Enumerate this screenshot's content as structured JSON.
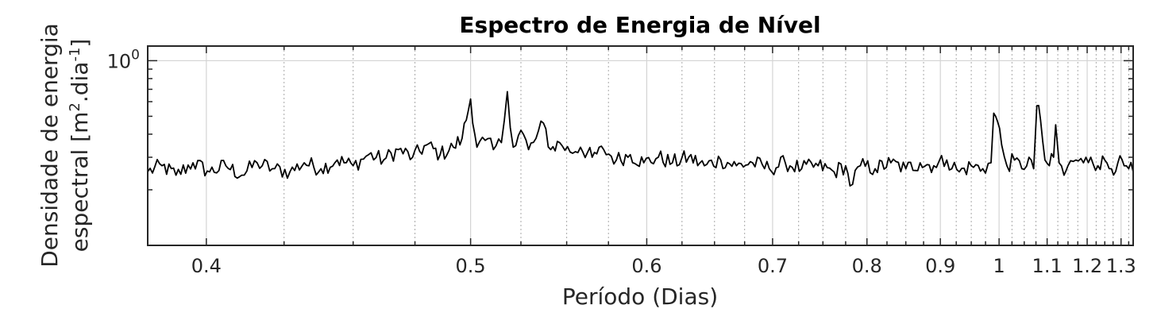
{
  "chart_data": {
    "type": "line",
    "title": "Espectro de Energia de Nível",
    "xlabel": "Período (Dias)",
    "ylabel_line1": "Densidade de energia",
    "ylabel_line2_prefix": "espectral [m",
    "ylabel_sup1": "2",
    "ylabel_mid": ".dia",
    "ylabel_sup2": "-1",
    "ylabel_suffix": "]",
    "xscale": "reciprocal",
    "yscale": "log",
    "xlim": [
      0.383,
      1.34
    ],
    "ylim": [
      0.1,
      1.2
    ],
    "x_ticks": [
      0.4,
      0.5,
      0.6,
      0.7,
      0.8,
      0.9,
      1.0,
      1.1,
      1.2,
      1.3
    ],
    "x_tick_labels": [
      "0.4",
      "0.5",
      "0.6",
      "0.7",
      "0.8",
      "0.9",
      "1",
      "1.1",
      "1.2",
      "1.3"
    ],
    "y_tick_values": [
      1
    ],
    "y_tick_labels": [
      "10"
    ],
    "y_tick_exponents": [
      "0"
    ],
    "grid": true,
    "colors": {
      "line": "#000000",
      "grid": "#d4d4d4",
      "axis": "#262626"
    },
    "series": [
      {
        "x": [
          0.383,
          0.387,
          0.391,
          0.396,
          0.401,
          0.406,
          0.411,
          0.416,
          0.421,
          0.427,
          0.432,
          0.438,
          0.444,
          0.45,
          0.456,
          0.462,
          0.468,
          0.474,
          0.48,
          0.486,
          0.492,
          0.496,
          0.5,
          0.503,
          0.507,
          0.511,
          0.515,
          0.518,
          0.521,
          0.525,
          0.529,
          0.533,
          0.537,
          0.541,
          0.546,
          0.552,
          0.558,
          0.565,
          0.572,
          0.58,
          0.589,
          0.598,
          0.608,
          0.618,
          0.63,
          0.642,
          0.655,
          0.668,
          0.682,
          0.697,
          0.712,
          0.728,
          0.745,
          0.762,
          0.775,
          0.78,
          0.792,
          0.81,
          0.83,
          0.85,
          0.87,
          0.89,
          0.91,
          0.93,
          0.95,
          0.97,
          0.985,
          0.99,
          0.997,
          1.005,
          1.015,
          1.03,
          1.045,
          1.06,
          1.07,
          1.077,
          1.085,
          1.095,
          1.105,
          1.115,
          1.12,
          1.128,
          1.14,
          1.15,
          1.17,
          1.19,
          1.21,
          1.23,
          1.25,
          1.27,
          1.29,
          1.31,
          1.325,
          1.34
        ],
        "y": [
          0.25,
          0.27,
          0.24,
          0.28,
          0.25,
          0.27,
          0.24,
          0.28,
          0.26,
          0.25,
          0.28,
          0.26,
          0.29,
          0.27,
          0.31,
          0.29,
          0.33,
          0.3,
          0.35,
          0.31,
          0.34,
          0.38,
          0.62,
          0.34,
          0.37,
          0.33,
          0.36,
          0.68,
          0.34,
          0.42,
          0.33,
          0.38,
          0.46,
          0.33,
          0.36,
          0.32,
          0.34,
          0.3,
          0.33,
          0.29,
          0.31,
          0.28,
          0.3,
          0.28,
          0.3,
          0.27,
          0.29,
          0.27,
          0.28,
          0.26,
          0.28,
          0.26,
          0.27,
          0.25,
          0.27,
          0.21,
          0.27,
          0.26,
          0.28,
          0.26,
          0.28,
          0.27,
          0.29,
          0.25,
          0.27,
          0.26,
          0.28,
          0.52,
          0.47,
          0.35,
          0.27,
          0.29,
          0.26,
          0.3,
          0.26,
          0.57,
          0.48,
          0.29,
          0.27,
          0.3,
          0.45,
          0.28,
          0.24,
          0.27,
          0.29,
          0.28,
          0.3,
          0.27,
          0.29,
          0.26,
          0.28,
          0.27,
          0.26,
          0.25
        ]
      }
    ]
  }
}
